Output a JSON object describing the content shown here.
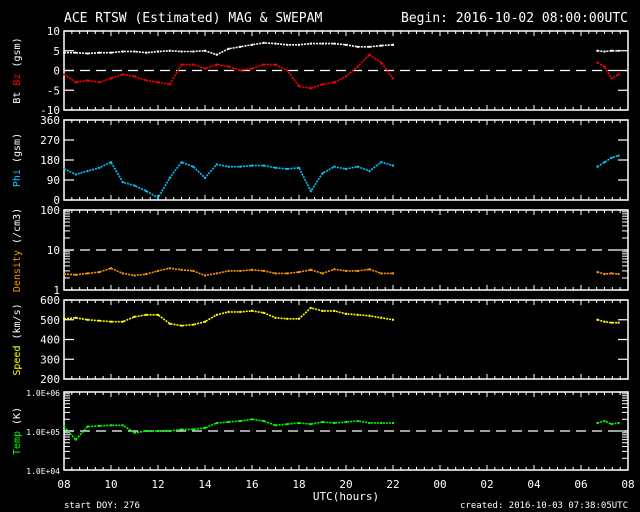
{
  "chart_data": {
    "type": "scatter",
    "title": "ACE RTSW (Estimated) MAG & SWEPAM",
    "begin": "Begin: 2016-10-02 08:00:00UTC",
    "xlabel": "UTC(hours)",
    "x_unit": "hours since begin",
    "xlim": [
      0,
      24
    ],
    "x_tick_labels": [
      "08",
      "10",
      "12",
      "14",
      "16",
      "18",
      "20",
      "22",
      "00",
      "02",
      "04",
      "06",
      "08"
    ],
    "footer_left": "start DOY: 276",
    "footer_right": "created: 2016-10-03 07:38:05UTC",
    "t_main": [
      0,
      0.5,
      1,
      1.5,
      2,
      2.5,
      3,
      3.5,
      4,
      4.5,
      5,
      5.5,
      6,
      6.5,
      7,
      7.5,
      8,
      8.5,
      9,
      9.5,
      10,
      10.5,
      11,
      11.5,
      12,
      12.5,
      13,
      13.5,
      14
    ],
    "t_tail": [
      22.7,
      23.0,
      23.3,
      23.6
    ],
    "panels": [
      {
        "label_parts": [
          {
            "text": "Bt ",
            "color": "#ffffff"
          },
          {
            "text": "Bz",
            "color": "#ff0000"
          },
          {
            "text": " (gsm)",
            "color": "#ffffff"
          }
        ],
        "scale": "linear",
        "ylim": [
          -10,
          10
        ],
        "ticks": [
          {
            "v": 10,
            "label": "10"
          },
          {
            "v": 5,
            "label": "5"
          },
          {
            "v": 0,
            "label": "0"
          },
          {
            "v": -5,
            "label": "-5"
          },
          {
            "v": -10,
            "label": "-10"
          }
        ],
        "reference_line": 0,
        "series": [
          {
            "name": "Bt",
            "color": "#ffffff",
            "main": [
              4.5,
              4.5,
              4.3,
              4.5,
              4.5,
              4.8,
              4.8,
              4.5,
              4.8,
              5.0,
              4.8,
              4.8,
              5.0,
              4.0,
              5.5,
              6.0,
              6.5,
              7.0,
              6.8,
              6.5,
              6.5,
              6.8,
              6.8,
              6.8,
              6.5,
              6.0,
              6.0,
              6.3,
              6.5
            ],
            "tail": [
              5.0,
              4.8,
              5.0,
              5.0
            ]
          },
          {
            "name": "Bz",
            "color": "#ff0000",
            "main": [
              -1,
              -3,
              -2.5,
              -3,
              -2,
              -1,
              -1.5,
              -2.5,
              -3,
              -3.5,
              1.5,
              1.5,
              0.5,
              1.5,
              1,
              0,
              0.5,
              1.5,
              1.5,
              0,
              -4,
              -4.5,
              -3.5,
              -3,
              -1.5,
              1,
              4,
              2,
              -2
            ],
            "tail": [
              2,
              1,
              -2,
              -1
            ]
          }
        ]
      },
      {
        "label_parts": [
          {
            "text": "Phi",
            "color": "#00c8ff"
          },
          {
            "text": " (gsm)",
            "color": "#ffffff"
          }
        ],
        "scale": "linear",
        "ylim": [
          0,
          360
        ],
        "ticks": [
          {
            "v": 360,
            "label": "360"
          },
          {
            "v": 270,
            "label": "270"
          },
          {
            "v": 180,
            "label": "180"
          },
          {
            "v": 90,
            "label": "90"
          },
          {
            "v": 0,
            "label": "0"
          }
        ],
        "series": [
          {
            "name": "Phi",
            "color": "#00c8ff",
            "main": [
              140,
              115,
              130,
              145,
              170,
              80,
              65,
              40,
              10,
              100,
              170,
              150,
              100,
              160,
              150,
              150,
              155,
              155,
              145,
              140,
              145,
              40,
              120,
              150,
              140,
              150,
              130,
              170,
              155
            ],
            "tail": [
              150,
              170,
              190,
              200
            ]
          }
        ]
      },
      {
        "label_parts": [
          {
            "text": "Density",
            "color": "#ff9600"
          },
          {
            "text": " (/cm3)",
            "color": "#ffffff"
          }
        ],
        "scale": "log",
        "ylim": [
          1,
          100
        ],
        "ticks": [
          {
            "v": 100,
            "label": "100"
          },
          {
            "v": 10,
            "label": "10"
          },
          {
            "v": 1,
            "label": "1"
          }
        ],
        "reference_line": 10,
        "series": [
          {
            "name": "Density",
            "color": "#ff9600",
            "main": [
              2.5,
              2.4,
              2.6,
              2.8,
              3.5,
              2.6,
              2.3,
              2.5,
              3.0,
              3.5,
              3.2,
              3.0,
              2.3,
              2.6,
              3.0,
              3.0,
              3.2,
              3.0,
              2.6,
              2.6,
              2.8,
              3.2,
              2.6,
              3.3,
              3.0,
              3.0,
              3.3,
              2.6,
              2.6
            ],
            "tail": [
              2.8,
              2.5,
              2.6,
              2.5
            ]
          }
        ]
      },
      {
        "label_parts": [
          {
            "text": "Speed",
            "color": "#ffff00"
          },
          {
            "text": " (km/s)",
            "color": "#ffffff"
          }
        ],
        "scale": "linear",
        "ylim": [
          200,
          600
        ],
        "ticks": [
          {
            "v": 600,
            "label": "600"
          },
          {
            "v": 500,
            "label": "500"
          },
          {
            "v": 400,
            "label": "400"
          },
          {
            "v": 300,
            "label": "300"
          },
          {
            "v": 200,
            "label": "200"
          }
        ],
        "series": [
          {
            "name": "Speed",
            "color": "#ffff00",
            "main": [
              505,
              510,
              500,
              495,
              490,
              490,
              515,
              525,
              525,
              480,
              470,
              475,
              490,
              525,
              540,
              540,
              545,
              535,
              510,
              505,
              505,
              560,
              545,
              545,
              530,
              525,
              520,
              510,
              500
            ],
            "tail": [
              500,
              490,
              485,
              485
            ]
          }
        ]
      },
      {
        "label_parts": [
          {
            "text": "Temp",
            "color": "#00ff00"
          },
          {
            "text": " (K)",
            "color": "#ffffff"
          }
        ],
        "scale": "log",
        "ylim": [
          10000,
          1000000
        ],
        "ticks": [
          {
            "v": 1000000,
            "label": "1.0E+06"
          },
          {
            "v": 100000,
            "label": "1.0E+05"
          },
          {
            "v": 10000,
            "label": "1.0E+04"
          }
        ],
        "reference_line": 100000,
        "series": [
          {
            "name": "Temp",
            "color": "#00ff00",
            "main": [
              130000,
              60000,
              130000,
              135000,
              140000,
              140000,
              90000,
              100000,
              100000,
              100000,
              110000,
              110000,
              120000,
              160000,
              170000,
              180000,
              200000,
              180000,
              140000,
              150000,
              160000,
              150000,
              170000,
              160000,
              170000,
              180000,
              160000,
              160000,
              160000
            ],
            "tail": [
              160000,
              180000,
              150000,
              160000
            ]
          }
        ]
      }
    ]
  }
}
